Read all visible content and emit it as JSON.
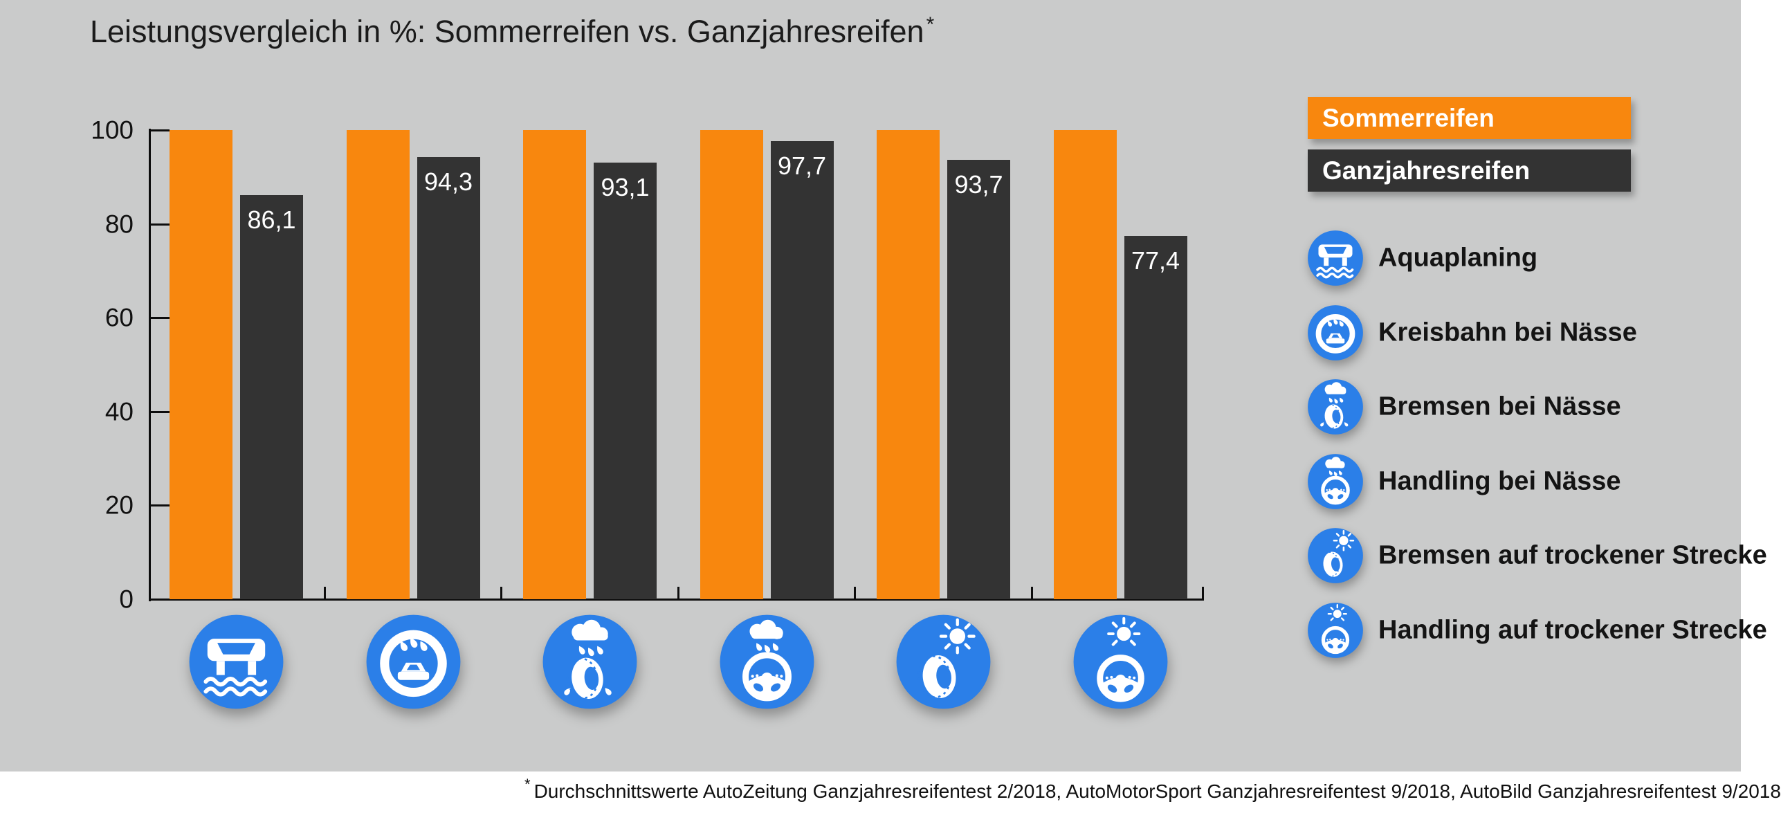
{
  "title": {
    "text": "Leistungsvergleich in %: Sommerreifen vs. Ganzjahresreifen",
    "asterisk": "*"
  },
  "colors": {
    "background": "#CACBCB",
    "summer_orange": "#F8870E",
    "allseason_dark": "#333333",
    "icon_blue": "#2B7FE8",
    "axis_black": "#0d0d0d",
    "footnote_band": "#FFFFFF"
  },
  "legend": {
    "series": [
      {
        "label": "Sommerreifen",
        "color": "#F8870E"
      },
      {
        "label": "Ganzjahresreifen",
        "color": "#333333"
      }
    ]
  },
  "categories": [
    {
      "icon": "aquaplaning-icon",
      "label": "Aquaplaning"
    },
    {
      "icon": "kreisbahn-naesse-icon",
      "label": "Kreisbahn bei Nässe"
    },
    {
      "icon": "bremsen-naesse-icon",
      "label": "Bremsen bei Nässe"
    },
    {
      "icon": "handling-naesse-icon",
      "label": "Handling bei Nässe"
    },
    {
      "icon": "bremsen-trocken-icon",
      "label": "Bremsen auf trockener Strecke"
    },
    {
      "icon": "handling-trocken-icon",
      "label": "Handling auf trockener Strecke"
    }
  ],
  "chart_data": {
    "type": "bar",
    "title": "Leistungsvergleich in %: Sommerreifen vs. Ganzjahresreifen*",
    "categories": [
      "Aquaplaning",
      "Kreisbahn bei Nässe",
      "Bremsen bei Nässe",
      "Handling bei Nässe",
      "Bremsen auf trockener Strecke",
      "Handling auf trockener Strecke"
    ],
    "series": [
      {
        "name": "Sommerreifen",
        "color": "#F8870E",
        "values": [
          100,
          100,
          100,
          100,
          100,
          100
        ]
      },
      {
        "name": "Ganzjahresreifen",
        "color": "#333333",
        "values": [
          86.1,
          94.3,
          93.1,
          97.7,
          93.7,
          77.4
        ]
      }
    ],
    "value_labels": [
      "86,1",
      "94,3",
      "93,1",
      "97,7",
      "93,7",
      "77,4"
    ],
    "xlabel": "",
    "ylabel": "",
    "ylim": [
      0,
      100
    ],
    "yticks": [
      0,
      20,
      40,
      60,
      80,
      100
    ],
    "grid": false,
    "legend_position": "top-right"
  },
  "footnote": {
    "asterisk": "*",
    "text": "Durchschnittswerte AutoZeitung Ganzjahresreifentest 2/2018, AutoMotorSport Ganzjahresreifentest 9/2018, AutoBild Ganzjahresreifentest 9/2018"
  }
}
